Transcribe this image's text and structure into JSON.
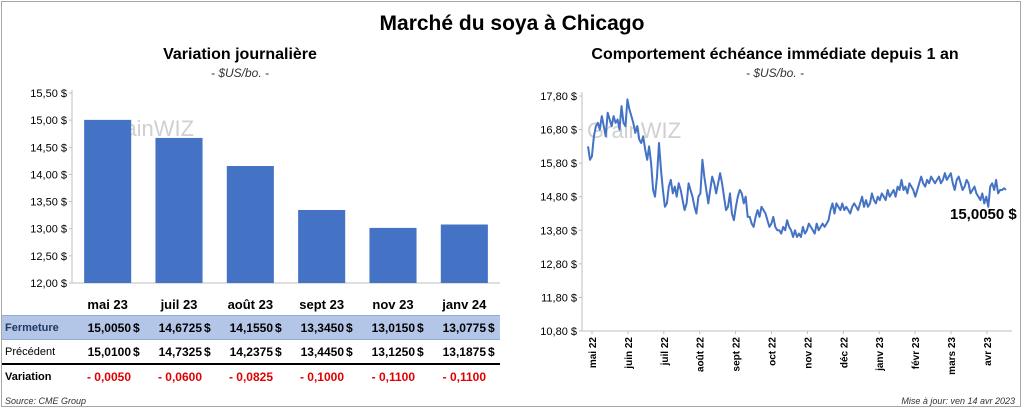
{
  "title": "Marché du soya à Chicago",
  "left_chart": {
    "title": "Variation journalière",
    "unit": "- $US/bo. -",
    "watermark": "GrainWIZ"
  },
  "right_chart": {
    "title": "Comportement échéance immédiate depuis 1 an",
    "unit": "- $US/bo. -",
    "watermark": "GrainWIZ",
    "last_value_label": "15,0050 $"
  },
  "table": {
    "rows": [
      {
        "label": "Fermeture",
        "values": [
          "15,0050",
          "14,6725",
          "14,1550",
          "13,3450",
          "13,0150",
          "13,0775"
        ],
        "suffix": "$"
      },
      {
        "label": "Précédent",
        "values": [
          "15,0100",
          "14,7325",
          "14,2375",
          "13,4450",
          "13,1250",
          "13,1875"
        ],
        "suffix": "$"
      },
      {
        "label": "Variation",
        "values": [
          "- 0,0050",
          "- 0,0600",
          "- 0,0825",
          "- 0,1000",
          "- 0,1100",
          "- 0,1100"
        ],
        "suffix": ""
      }
    ]
  },
  "footer": {
    "source": "Source: CME Group",
    "updated": "Mise à jour: ven 14 avr 2023"
  },
  "colors": {
    "bar": "#4472c4",
    "line": "#4472c4",
    "highlight_row": "#b4c6e7",
    "negative": "#e00000"
  },
  "chart_data": [
    {
      "type": "bar",
      "categories": [
        "mai 23",
        "juil 23",
        "août 23",
        "sept 23",
        "nov 23",
        "janv 24"
      ],
      "values": [
        15.005,
        14.6725,
        14.155,
        13.345,
        13.015,
        13.0775
      ],
      "ylim": [
        12.0,
        15.5
      ],
      "yticks": [
        12.0,
        12.5,
        13.0,
        13.5,
        14.0,
        14.5,
        15.0,
        15.5
      ],
      "ytick_labels": [
        "12,00 $",
        "12,50 $",
        "13,00 $",
        "13,50 $",
        "14,00 $",
        "14,50 $",
        "15,00 $",
        "15,50 $"
      ],
      "grid": false
    },
    {
      "type": "line",
      "xlabels": [
        "mai 22",
        "juin 22",
        "juil 22",
        "août 22",
        "sept 22",
        "oct 22",
        "nov 22",
        "déc 22",
        "janv 23",
        "févr 23",
        "mars 23",
        "avr 23"
      ],
      "ylim": [
        10.8,
        17.8
      ],
      "yticks": [
        10.8,
        11.8,
        12.8,
        13.8,
        14.8,
        15.8,
        16.8,
        17.8
      ],
      "ytick_labels": [
        "10,80 $",
        "11,80 $",
        "12,80 $",
        "13,80 $",
        "14,80 $",
        "15,80 $",
        "16,80 $",
        "17,80 $"
      ],
      "series": [
        {
          "values": [
            16.3,
            15.9,
            16.0,
            16.6,
            16.9,
            17.0,
            16.8,
            17.2,
            16.9,
            16.6,
            17.3,
            17.1,
            16.9,
            17.2,
            17.0,
            17.1,
            16.8,
            17.5,
            17.0,
            16.9,
            17.7,
            17.4,
            17.2,
            17.0,
            16.7,
            16.9,
            16.5,
            16.4,
            16.6,
            16.2,
            15.9,
            16.3,
            15.8,
            15.0,
            14.8,
            15.4,
            16.4,
            15.6,
            15.0,
            14.5,
            14.6,
            15.1,
            15.3,
            14.9,
            15.1,
            14.8,
            15.2,
            15.0,
            14.7,
            14.4,
            14.6,
            15.2,
            15.0,
            14.8,
            14.5,
            14.3,
            14.8,
            14.9,
            15.9,
            15.4,
            15.0,
            14.6,
            15.0,
            15.4,
            15.2,
            14.9,
            15.2,
            15.5,
            15.2,
            14.8,
            14.4,
            14.5,
            14.9,
            14.3,
            14.1,
            14.5,
            14.8,
            15.0,
            14.9,
            14.6,
            14.8,
            14.2,
            14.2,
            14.0,
            13.9,
            14.2,
            14.4,
            14.2,
            14.5,
            14.4,
            14.3,
            14.1,
            13.9,
            14.0,
            14.2,
            13.9,
            13.8,
            13.8,
            13.7,
            13.9,
            13.8,
            14.1,
            13.9,
            13.8,
            13.6,
            13.8,
            13.6,
            13.7,
            13.6,
            13.9,
            13.7,
            13.8,
            14.0,
            13.9,
            13.8,
            13.7,
            14.0,
            13.8,
            13.9,
            14.0,
            13.9,
            14.0,
            14.1,
            14.4,
            14.6,
            14.3,
            14.6,
            14.5,
            14.4,
            14.6,
            14.4,
            14.5,
            14.4,
            14.3,
            14.5,
            14.6,
            14.5,
            14.4,
            14.6,
            14.8,
            14.5,
            14.7,
            14.5,
            14.6,
            14.9,
            14.7,
            14.6,
            14.8,
            14.7,
            14.9,
            14.8,
            14.7,
            15.0,
            14.8,
            14.9,
            15.0,
            14.8,
            15.1,
            15.0,
            15.3,
            15.0,
            15.1,
            14.9,
            15.2,
            15.1,
            15.0,
            14.8,
            15.0,
            15.2,
            15.4,
            15.2,
            15.1,
            15.3,
            15.2,
            15.4,
            15.3,
            15.2,
            15.3,
            15.4,
            15.2,
            15.3,
            15.5,
            15.3,
            15.4,
            15.5,
            15.2,
            15.0,
            15.3,
            15.4,
            15.2,
            15.0,
            15.1,
            15.3,
            15.2,
            14.9,
            15.0,
            15.1,
            14.9,
            14.8,
            14.7,
            14.9,
            14.6,
            14.8,
            14.5,
            15.1,
            15.2,
            15.0,
            15.3,
            14.9,
            15.0,
            15.0,
            15.05,
            15.005
          ]
        }
      ]
    }
  ]
}
